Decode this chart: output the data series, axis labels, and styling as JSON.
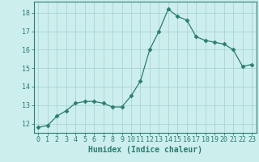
{
  "x": [
    0,
    1,
    2,
    3,
    4,
    5,
    6,
    7,
    8,
    9,
    10,
    11,
    12,
    13,
    14,
    15,
    16,
    17,
    18,
    19,
    20,
    21,
    22,
    23
  ],
  "y": [
    11.8,
    11.9,
    12.4,
    12.7,
    13.1,
    13.2,
    13.2,
    13.1,
    12.9,
    12.9,
    13.5,
    14.3,
    16.0,
    17.0,
    18.2,
    17.8,
    17.6,
    16.7,
    16.5,
    16.4,
    16.3,
    16.0,
    15.1,
    15.2
  ],
  "line_color": "#2d7d6e",
  "marker": "D",
  "marker_size": 2.5,
  "bg_color": "#cceeed",
  "grid_color": "#aad6d3",
  "axis_color": "#2d7d6e",
  "xlabel": "Humidex (Indice chaleur)",
  "ylim": [
    11.5,
    18.6
  ],
  "xlim": [
    -0.5,
    23.5
  ],
  "yticks": [
    12,
    13,
    14,
    15,
    16,
    17,
    18
  ],
  "xticks": [
    0,
    1,
    2,
    3,
    4,
    5,
    6,
    7,
    8,
    9,
    10,
    11,
    12,
    13,
    14,
    15,
    16,
    17,
    18,
    19,
    20,
    21,
    22,
    23
  ],
  "label_fontsize": 7,
  "tick_fontsize": 6
}
